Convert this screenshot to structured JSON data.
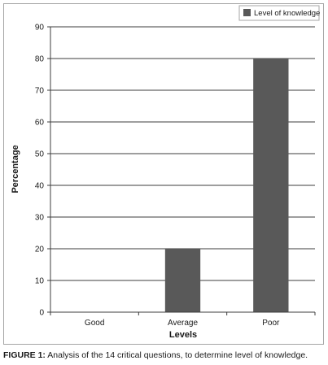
{
  "chart_data": {
    "type": "bar",
    "categories": [
      "Good",
      "Average",
      "Poor"
    ],
    "series": [
      {
        "name": "Level of knowledge",
        "values": [
          0,
          20,
          80
        ],
        "color": "#595959"
      }
    ],
    "xlabel": "Levels",
    "ylabel": "Percentage",
    "ylim": [
      0,
      90
    ],
    "yticks": [
      0,
      10,
      20,
      30,
      40,
      50,
      60,
      70,
      80,
      90
    ],
    "grid": true,
    "legend_position": "top-right"
  },
  "caption": {
    "label": "FIGURE 1:",
    "text": " Analysis of the 14 critical questions, to determine level of knowledge."
  }
}
